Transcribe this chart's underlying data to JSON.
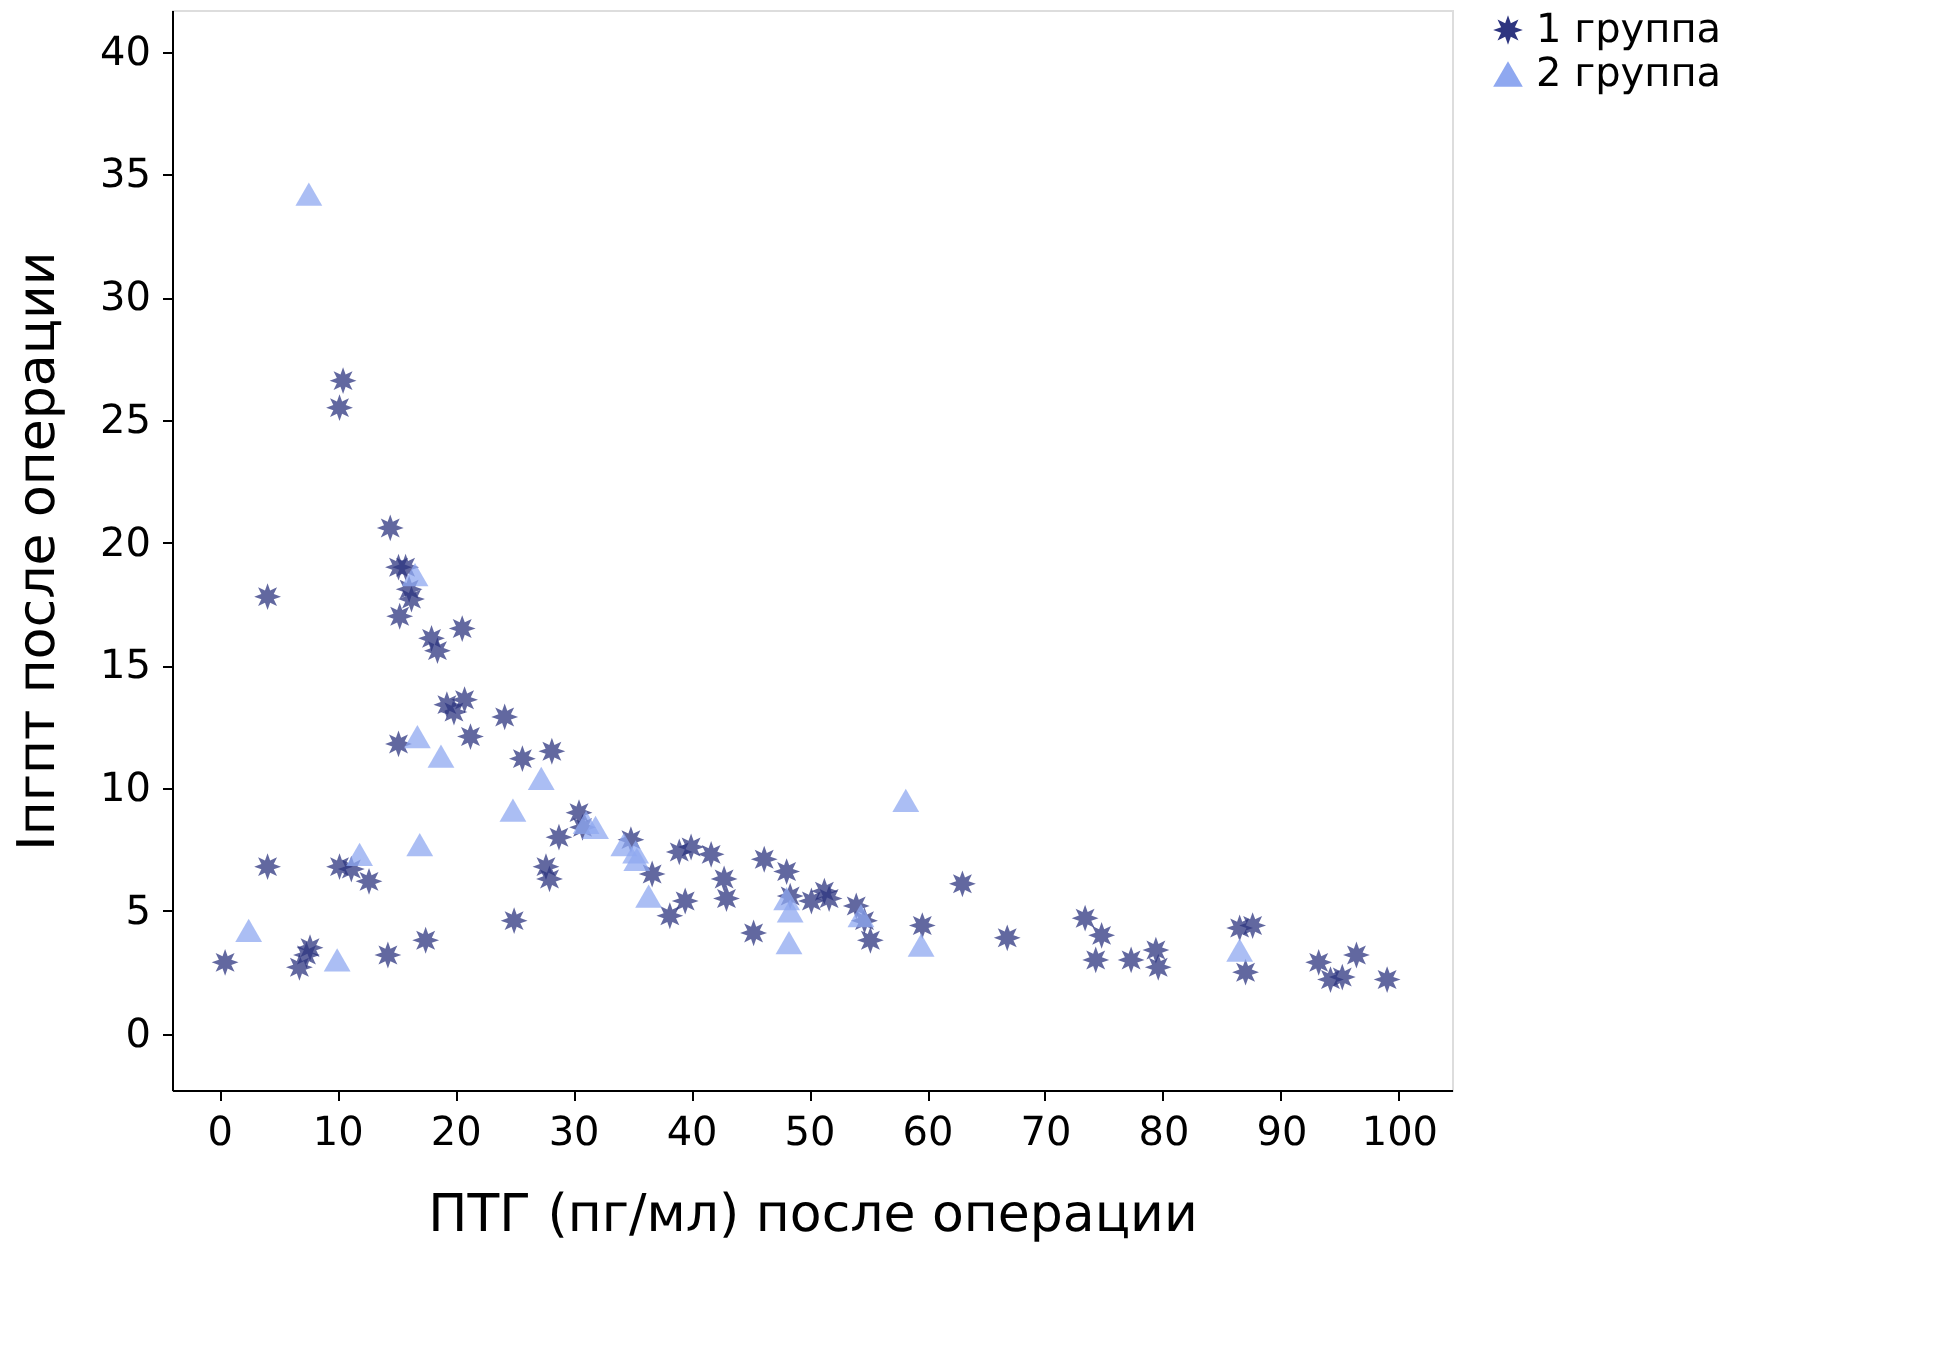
{
  "chart_data": {
    "type": "scatter",
    "xlabel": "ПТГ (пг/мл) после операции",
    "ylabel": "Iпгпт после операции",
    "xlim": [
      -4,
      104.5
    ],
    "ylim": [
      -2.3,
      41.7
    ],
    "xticks": [
      0,
      10,
      20,
      30,
      40,
      50,
      60,
      70,
      80,
      90,
      100
    ],
    "yticks": [
      0,
      5,
      10,
      15,
      20,
      25,
      30,
      35,
      40
    ],
    "grid": false,
    "legend": "top right",
    "series": [
      {
        "name": "1 группа",
        "color": "#2e3580",
        "marker": "star",
        "x": [
          0.5,
          4.1,
          4.1,
          6.8,
          7.4,
          7.7,
          10.2,
          10.5,
          10.2,
          11.2,
          12.7,
          14.5,
          14.3,
          15.2,
          15.2,
          15.8,
          15.3,
          16.1,
          16.3,
          17.5,
          18.0,
          18.5,
          19.3,
          19.9,
          20.6,
          20.8,
          21.3,
          24.2,
          25.0,
          25.7,
          28.2,
          27.7,
          28.0,
          28.8,
          30.5,
          30.8,
          34.9,
          36.7,
          39.0,
          40.0,
          41.7,
          42.8,
          43.0,
          39.5,
          38.2,
          46.2,
          48.1,
          48.4,
          50.2,
          51.3,
          51.7,
          45.3,
          54.0,
          55.2,
          54.7,
          59.6,
          63.0,
          66.8,
          73.4,
          74.8,
          74.3,
          77.3,
          79.4,
          79.6,
          86.5,
          87.6,
          87.0,
          93.2,
          94.2,
          95.2,
          96.4,
          99.0
        ],
        "values": [
          2.9,
          17.8,
          6.8,
          2.7,
          3.2,
          3.5,
          6.8,
          26.6,
          25.5,
          6.7,
          6.2,
          20.6,
          3.2,
          11.8,
          19.0,
          19.0,
          17.0,
          18.1,
          17.7,
          3.8,
          16.1,
          15.6,
          13.4,
          13.1,
          16.5,
          13.6,
          12.1,
          12.9,
          4.6,
          11.2,
          11.5,
          6.8,
          6.3,
          8.0,
          9.0,
          8.4,
          7.9,
          6.5,
          7.4,
          7.6,
          7.3,
          6.3,
          5.5,
          5.4,
          4.8,
          7.1,
          6.6,
          5.6,
          5.4,
          5.8,
          5.5,
          4.1,
          5.2,
          3.8,
          4.6,
          4.4,
          6.1,
          3.9,
          4.7,
          4.0,
          3.0,
          3.0,
          3.4,
          2.7,
          4.3,
          4.4,
          2.5,
          2.9,
          2.2,
          2.3,
          3.2,
          2.2
        ]
      },
      {
        "name": "2 группа",
        "color": "#8fa8f0",
        "marker": "triangle",
        "x": [
          2.5,
          7.6,
          10.0,
          11.9,
          16.6,
          17.0,
          16.8,
          18.8,
          24.9,
          27.3,
          31.1,
          31.9,
          34.3,
          35.3,
          35.4,
          36.4,
          48.1,
          48.4,
          48.3,
          54.4,
          58.2,
          59.5,
          86.5
        ],
        "values": [
          4.2,
          34.2,
          3.0,
          7.3,
          18.7,
          7.7,
          12.1,
          11.3,
          9.1,
          10.4,
          8.6,
          8.4,
          7.7,
          7.4,
          7.1,
          5.6,
          5.5,
          5.0,
          3.7,
          4.8,
          9.5,
          3.6,
          3.4
        ]
      }
    ]
  }
}
